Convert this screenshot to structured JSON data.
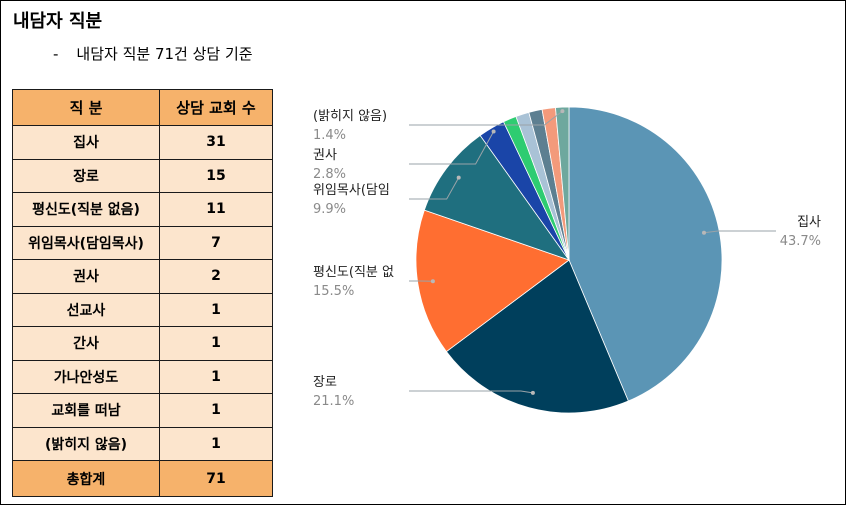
{
  "title": "내담자 직분",
  "subtitle": {
    "dash": "-",
    "text": "내담자 직분 71건 상담 기준"
  },
  "table": {
    "headers": [
      "직 분",
      "상담 교회 수"
    ],
    "rows": [
      {
        "role": "집사",
        "count": "31"
      },
      {
        "role": "장로",
        "count": "15"
      },
      {
        "role": "평신도(직분 없음)",
        "count": "11"
      },
      {
        "role": "위임목사(담임목사)",
        "count": "7"
      },
      {
        "role": "권사",
        "count": "2"
      },
      {
        "role": "선교사",
        "count": "1"
      },
      {
        "role": "간사",
        "count": "1"
      },
      {
        "role": "가나안성도",
        "count": "1"
      },
      {
        "role": "교회를 떠남",
        "count": "1"
      },
      {
        "role": "(밝히지 않음)",
        "count": "1"
      }
    ],
    "total": {
      "role": "총합계",
      "count": "71"
    }
  },
  "chart_data": {
    "type": "pie",
    "title": "",
    "slices": [
      {
        "label": "집사",
        "value": 31,
        "pct_label": "43.7%",
        "color": "#5b95b5"
      },
      {
        "label": "장로",
        "value": 15,
        "pct_label": "21.1%",
        "color": "#003f5c"
      },
      {
        "label": "평신도(직분 없",
        "value": 11,
        "pct_label": "15.5%",
        "color": "#ff6e31"
      },
      {
        "label": "위임목사(담임",
        "value": 7,
        "pct_label": "9.9%",
        "color": "#1f6f7f"
      },
      {
        "label": "권사",
        "value": 2,
        "pct_label": "2.8%",
        "color": "#1a45a8"
      },
      {
        "label": "",
        "value": 1,
        "pct_label": "",
        "color": "#2ecc71"
      },
      {
        "label": "",
        "value": 1,
        "pct_label": "",
        "color": "#a9c2d6"
      },
      {
        "label": "",
        "value": 1,
        "pct_label": "",
        "color": "#5d7f91"
      },
      {
        "label": "",
        "value": 1,
        "pct_label": "",
        "color": "#f39a7b"
      },
      {
        "label": "(밝히지 않음)",
        "value": 1,
        "pct_label": "1.4%",
        "color": "#6ea89e"
      }
    ],
    "start_angle_deg": 0,
    "direction": "clockwise",
    "legend": "callout labels"
  }
}
